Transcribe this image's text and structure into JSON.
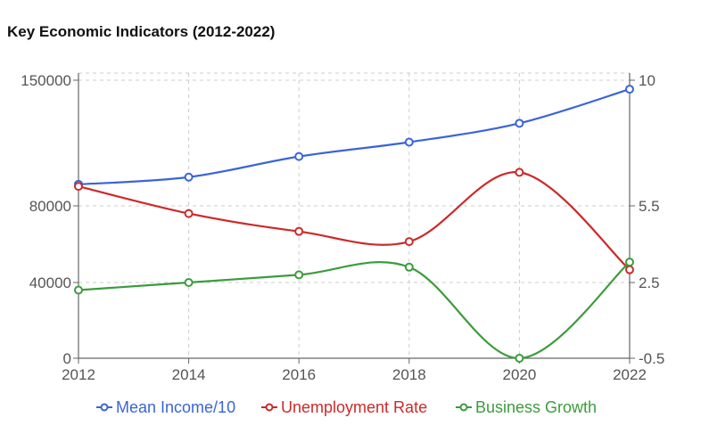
{
  "chart_data": {
    "type": "line",
    "title": "Key Economic Indicators (2012-2022)",
    "x": [
      2012,
      2014,
      2016,
      2018,
      2020,
      2022
    ],
    "x_ticks": [
      "2012",
      "2014",
      "2016",
      "2018",
      "2020",
      "2022"
    ],
    "y_left": {
      "ticks": [
        0,
        40000,
        80000,
        150000
      ],
      "tick_labels": [
        "0",
        "40000",
        "80000",
        "150000"
      ]
    },
    "y_right": {
      "ticks": [
        -0.5,
        2.5,
        5.5,
        10
      ],
      "tick_labels": [
        "-0.5",
        "2.5",
        "5.5",
        "10"
      ]
    },
    "series": [
      {
        "name": "Mean Income/10",
        "axis": "left",
        "color": "#3a64d8",
        "values": [
          92000,
          96000,
          107500,
          115500,
          126000,
          145000
        ]
      },
      {
        "name": "Unemployment Rate",
        "axis": "right",
        "color": "#cc2a2a",
        "values": [
          6.2,
          5.2,
          4.5,
          4.1,
          6.7,
          3.0
        ]
      },
      {
        "name": "Business Growth",
        "axis": "right",
        "color": "#3c9c3c",
        "values": [
          2.2,
          2.5,
          2.8,
          3.1,
          -0.5,
          3.3
        ]
      }
    ],
    "grid": true,
    "legend": "bottom"
  }
}
